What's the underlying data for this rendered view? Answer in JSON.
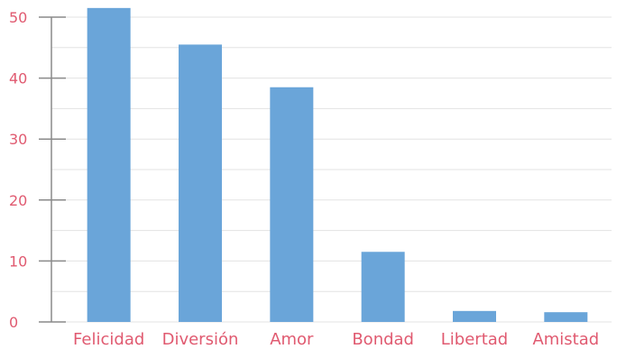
{
  "chart_data": {
    "type": "bar",
    "categories": [
      "Felicidad",
      "Diversión",
      "Amor",
      "Bondad",
      "Libertad",
      "Amistad"
    ],
    "values": [
      51.5,
      45.5,
      38.5,
      11.5,
      1.8,
      1.6
    ],
    "ylim": [
      0,
      50
    ],
    "yticks": [
      0,
      10,
      20,
      30,
      40,
      50
    ],
    "grid": true,
    "colors": {
      "bar": "#6aa5d9",
      "labels": "#e05a70",
      "grid": "#e3e3e3",
      "axis": "#8a8a8a"
    }
  }
}
